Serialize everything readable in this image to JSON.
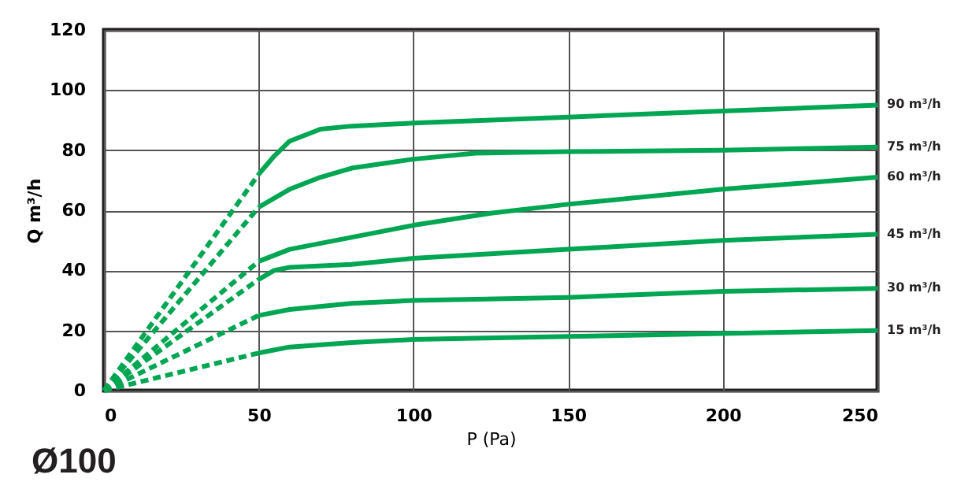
{
  "chart_data": {
    "type": "line",
    "xlabel": "P (Pa)",
    "ylabel": "Q m³/h",
    "xlim": [
      0,
      250
    ],
    "xticks": [
      0,
      50,
      100,
      150,
      200,
      250
    ],
    "ylim": [
      0,
      120
    ],
    "yticks": [
      0,
      20,
      40,
      60,
      80,
      100,
      120
    ],
    "grid": true,
    "annotations": [
      "Ø100"
    ],
    "series": [
      {
        "color": "#00a651",
        "line_style": "dashed",
        "x": [
          0,
          50
        ],
        "values": [
          0,
          72
        ]
      },
      {
        "name": "90 m³/h",
        "color": "#00a651",
        "line_style": "solid",
        "x": [
          50,
          55,
          60,
          70,
          80,
          100,
          150,
          200,
          250
        ],
        "values": [
          72,
          78,
          83,
          87,
          88,
          89,
          91,
          93,
          95
        ]
      },
      {
        "color": "#00a651",
        "line_style": "dashed",
        "x": [
          0,
          50
        ],
        "values": [
          0,
          61
        ]
      },
      {
        "name": "75 m³/h",
        "color": "#00a651",
        "line_style": "solid",
        "x": [
          50,
          60,
          70,
          80,
          100,
          120,
          150,
          200,
          250
        ],
        "values": [
          61,
          67,
          71,
          74,
          77,
          79,
          79.5,
          80,
          81
        ]
      },
      {
        "color": "#00a651",
        "line_style": "dashed",
        "x": [
          0,
          50
        ],
        "values": [
          0,
          43
        ]
      },
      {
        "name": "60 m³/h",
        "color": "#00a651",
        "line_style": "solid",
        "x": [
          50,
          60,
          80,
          100,
          125,
          150,
          200,
          250
        ],
        "values": [
          43,
          47,
          51,
          55,
          59,
          62,
          67,
          71
        ]
      },
      {
        "color": "#00a651",
        "line_style": "dashed",
        "x": [
          0,
          50
        ],
        "values": [
          0,
          37
        ]
      },
      {
        "name": "45 m³/h",
        "color": "#00a651",
        "line_style": "solid",
        "x": [
          50,
          55,
          60,
          80,
          100,
          150,
          200,
          250
        ],
        "values": [
          37,
          40,
          41,
          42,
          44,
          47,
          50,
          52
        ]
      },
      {
        "color": "#00a651",
        "line_style": "dashed",
        "x": [
          0,
          50
        ],
        "values": [
          0,
          25
        ]
      },
      {
        "name": "30 m³/h",
        "color": "#00a651",
        "line_style": "solid",
        "x": [
          50,
          60,
          80,
          100,
          150,
          200,
          250
        ],
        "values": [
          25,
          27,
          29,
          30,
          31,
          33,
          34
        ]
      },
      {
        "color": "#00a651",
        "line_style": "dashed",
        "x": [
          0,
          50
        ],
        "values": [
          0,
          12.5
        ]
      },
      {
        "name": "15 m³/h",
        "color": "#00a651",
        "line_style": "solid",
        "x": [
          50,
          60,
          80,
          100,
          150,
          200,
          250
        ],
        "values": [
          12.5,
          14.5,
          16,
          17,
          18,
          19,
          20
        ]
      }
    ]
  }
}
